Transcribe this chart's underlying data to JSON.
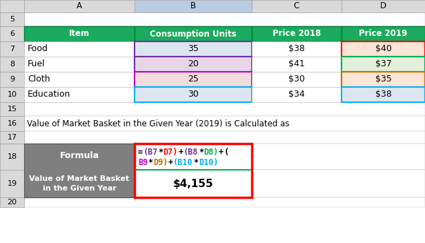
{
  "col_headers": [
    "A",
    "B",
    "C",
    "D"
  ],
  "header_row": [
    "Item",
    "Consumption Units",
    "Price 2018",
    "Price 2019"
  ],
  "data_rows": [
    [
      "Food",
      "35",
      "$38",
      "$40"
    ],
    [
      "Fuel",
      "20",
      "$41",
      "$37"
    ],
    [
      "Cloth",
      "25",
      "$30",
      "$35"
    ],
    [
      "Education",
      "30",
      "$34",
      "$38"
    ]
  ],
  "label_text": "Value of Market Basket in the Given Year (2019) is Calculated as",
  "formula_label": "Formula",
  "value_label": "Value of Market Basket\nin the Given Year",
  "value_text": "$4,155",
  "header_bg": "#1aab5e",
  "header_fg": "#ffffff",
  "gray_bg": "#7f7f7f",
  "gray_fg": "#ffffff",
  "white_bg": "#ffffff",
  "row_7_b_bg": "#dce6f1",
  "row_8_b_bg": "#e8d5e8",
  "row_9_b_bg": "#f2dcdb",
  "row_10_b_bg": "#dce6f1",
  "row_7_d_bg": "#fce4d6",
  "row_8_d_bg": "#e2efda",
  "row_9_d_bg": "#fce4d6",
  "row_10_d_bg": "#dce6f1",
  "excel_bg": "#ffffff",
  "grid_color": "#c0c0c0",
  "col_header_bg": "#d9d9d9",
  "red_border": "#ff0000",
  "green_line": "#00b050",
  "b_col_selected_bg": "#b8cce4",
  "formula_line1": [
    [
      "=",
      "#000000"
    ],
    [
      "(B7",
      "#7030a0"
    ],
    [
      "*",
      "#000000"
    ],
    [
      "D7)",
      "#ff0000"
    ],
    [
      "+",
      "#000000"
    ],
    [
      "(B8",
      "#7030a0"
    ],
    [
      "*",
      "#000000"
    ],
    [
      "D8)",
      "#00b050"
    ],
    [
      "+",
      "#000000"
    ],
    [
      "(",
      "#000000"
    ]
  ],
  "formula_line2": [
    [
      "B9",
      "#c000c0"
    ],
    [
      "*",
      "#000000"
    ],
    [
      "D9)",
      "#c07000"
    ],
    [
      "+",
      "#000000"
    ],
    [
      "(B10",
      "#00b0f0"
    ],
    [
      "*",
      "#000000"
    ],
    [
      "D10)",
      "#00b0f0"
    ]
  ],
  "b_border_colors": [
    "#7030a0",
    "#7030a0",
    "#c000c0",
    "#00b0f0"
  ],
  "d_border_colors": [
    "#ff0000",
    "#00b050",
    "#c07000",
    "#00b0f0"
  ]
}
